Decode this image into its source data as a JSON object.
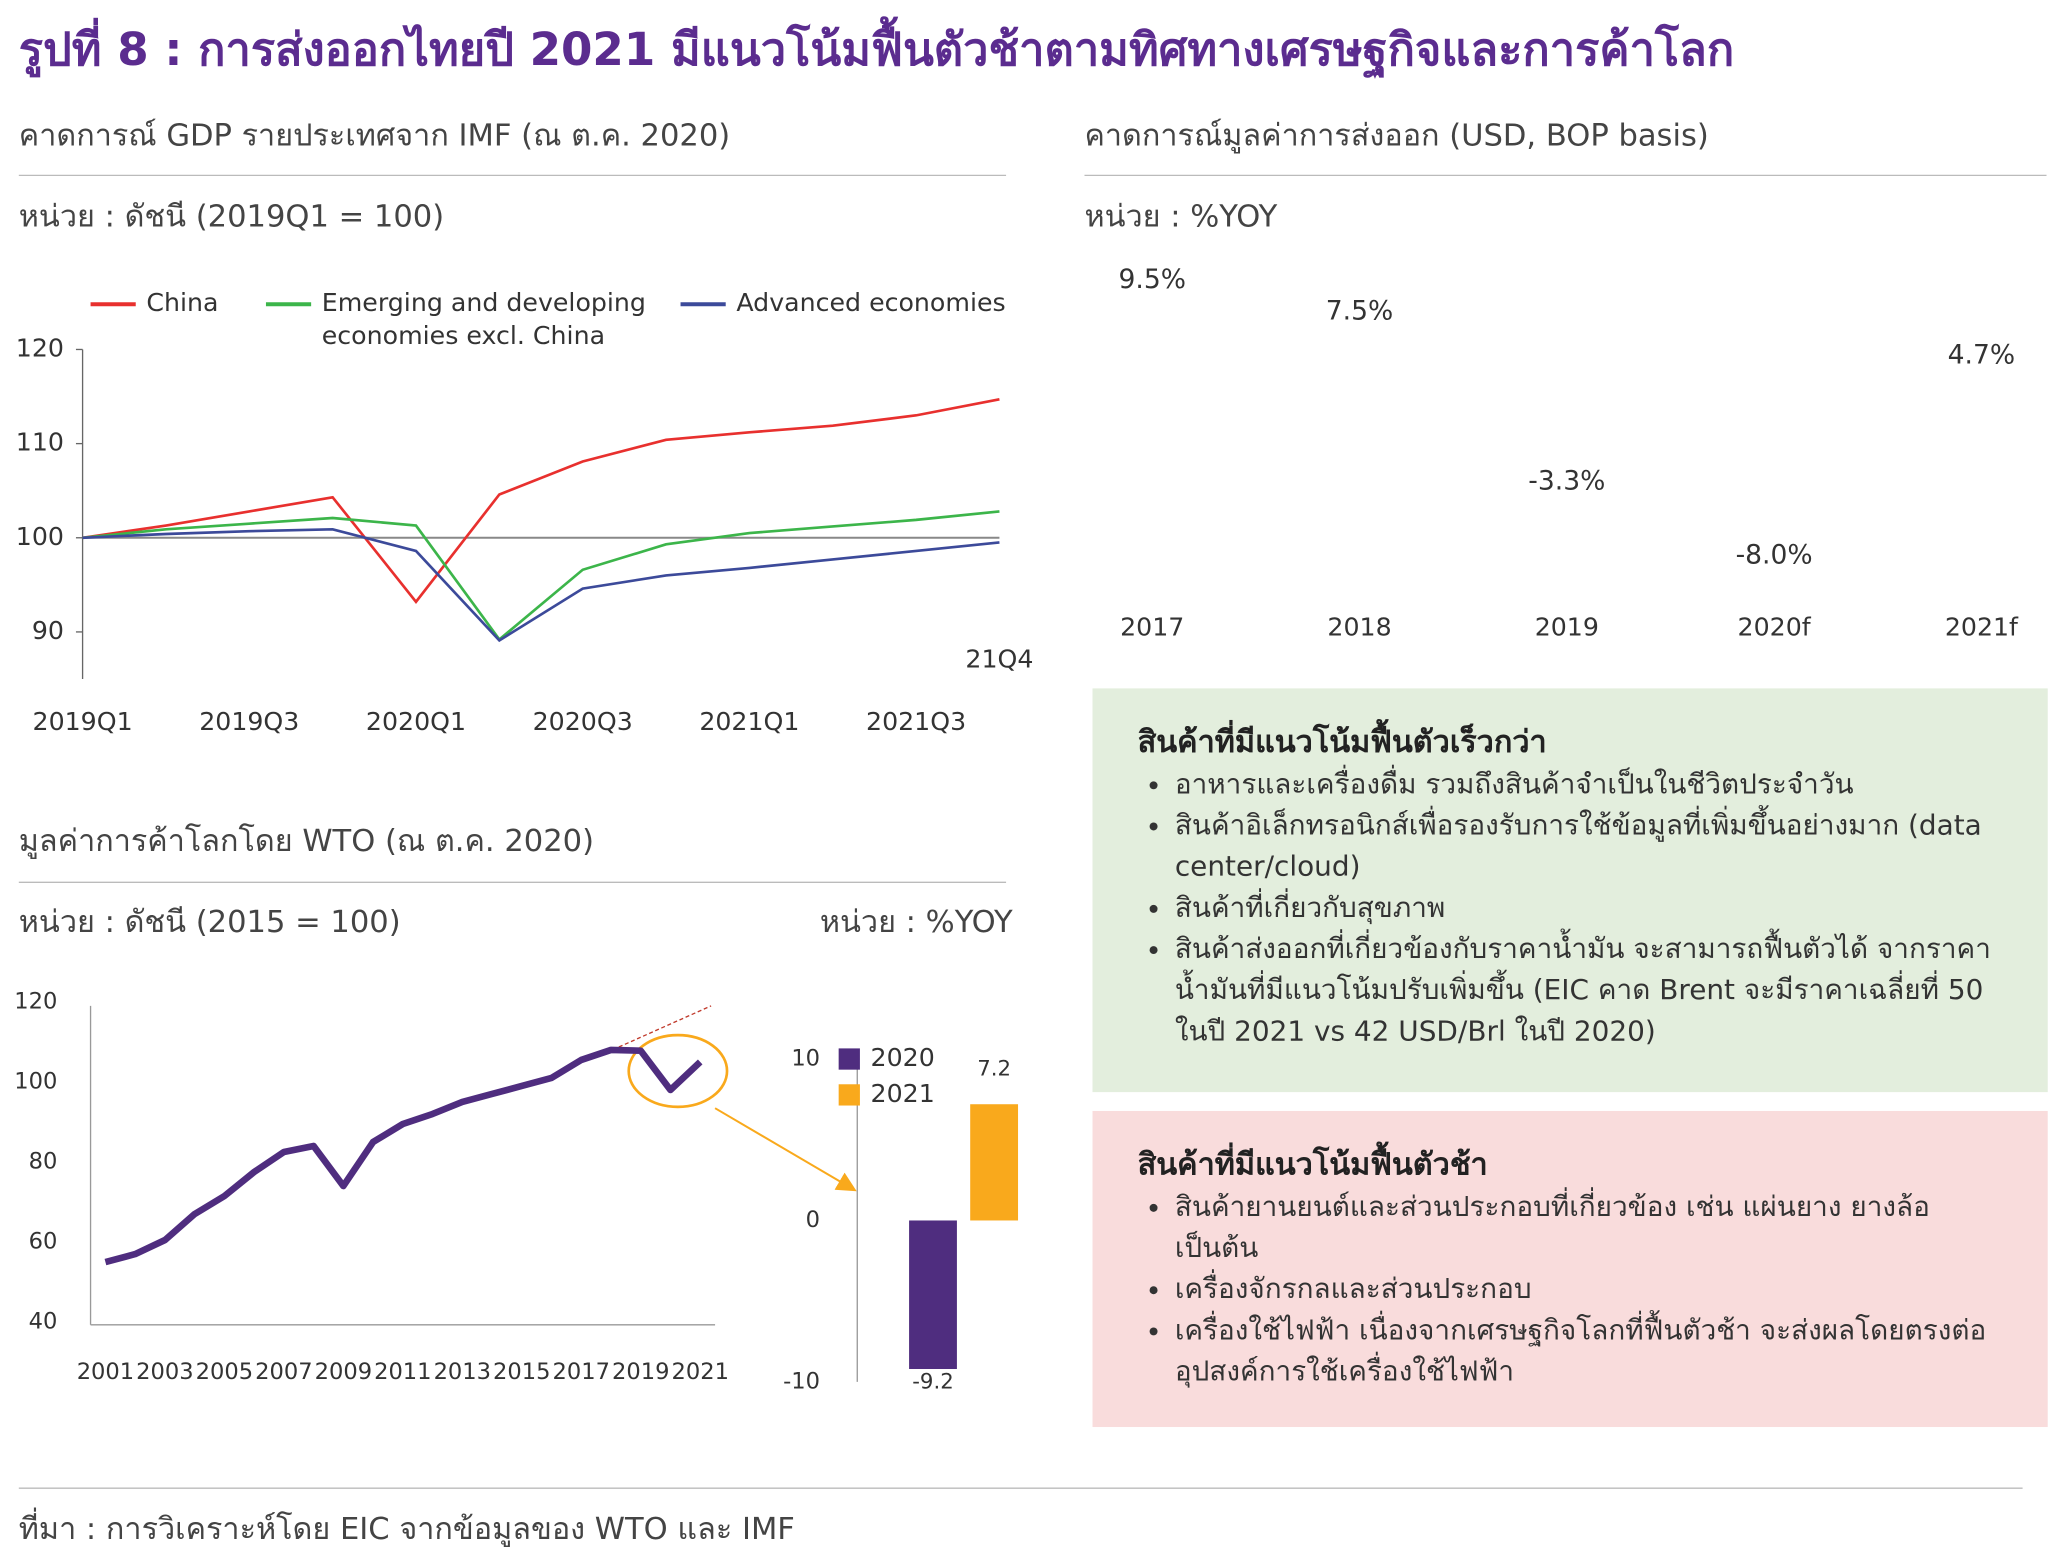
{
  "title": "รูปที่ 8 : การส่งออกไทยปี 2021 มีแนวโน้มฟื้นตัวช้าตามทิศทางเศรษฐกิจและการค้าโลก",
  "source": "ที่มา : การวิเคราะห์โดย EIC จากข้อมูลของ WTO และ IMF",
  "chart_data": [
    {
      "type": "line",
      "title": "คาดการณ์ GDP รายประเทศจาก IMF (ณ ต.ค. 2020)",
      "unit": "หน่วย : ดัชนี (2019Q1 = 100)",
      "categories": [
        "2019Q1",
        null,
        "2019Q3",
        null,
        "2020Q1",
        null,
        "2020Q3",
        null,
        "2021Q1",
        null,
        "2021Q3",
        null
      ],
      "annotation": "21Q4",
      "ylim": [
        85,
        120
      ],
      "yticks": [
        90,
        100,
        110,
        120
      ],
      "baseline": 100,
      "legend": "top",
      "series": [
        {
          "name": "China",
          "color": "#e8302e",
          "values": [
            100,
            101.3,
            102.8,
            104.3,
            93.2,
            104.6,
            108.1,
            110.4,
            111.2,
            111.9,
            113.0,
            114.7
          ]
        },
        {
          "name": "Emerging and developing economies excl. China",
          "color": "#3cb54a",
          "values": [
            100,
            100.9,
            101.5,
            102.1,
            101.3,
            89.2,
            96.6,
            99.3,
            100.5,
            101.2,
            101.9,
            102.8
          ]
        },
        {
          "name": "Advanced economies",
          "color": "#3c4a9a",
          "values": [
            100,
            100.4,
            100.7,
            100.9,
            98.6,
            89.1,
            94.6,
            96.0,
            96.8,
            97.7,
            98.6,
            99.5
          ]
        }
      ]
    },
    {
      "type": "bar",
      "title": "คาดการณ์มูลค่าการส่งออก (USD, BOP basis)",
      "unit": "หน่วย : %YOY",
      "categories": [
        "2017",
        "2018",
        "2019",
        "2020f",
        "2021f"
      ],
      "values": [
        9.5,
        7.5,
        -3.3,
        -8.0,
        4.7
      ],
      "value_labels": [
        "9.5%",
        "7.5%",
        "-3.3%",
        "-8.0%",
        "4.7%"
      ],
      "ylim": [
        -10,
        10
      ],
      "bars_visible": false
    },
    {
      "type": "line",
      "title": "มูลค่าการค้าโลกโดย WTO (ณ ต.ค. 2020)",
      "unit": "หน่วย : ดัชนี (2015 = 100)",
      "x": [
        2001,
        2002,
        2003,
        2004,
        2005,
        2006,
        2007,
        2008,
        2009,
        2010,
        2011,
        2012,
        2013,
        2014,
        2015,
        2016,
        2017,
        2018,
        2019,
        2020,
        2021
      ],
      "color": "#4f2d7f",
      "values": [
        55,
        57,
        60.5,
        67,
        71.5,
        77.5,
        82.5,
        84,
        74,
        85,
        89.5,
        92,
        95,
        97,
        99,
        101,
        105.5,
        108,
        107.8,
        98,
        105
      ],
      "xlim": [
        2000.5,
        2021.5
      ],
      "xticks": [
        2001,
        2003,
        2005,
        2007,
        2009,
        2011,
        2013,
        2015,
        2017,
        2019,
        2021
      ],
      "ylim": [
        40,
        120
      ],
      "yticks": [
        40,
        60,
        80,
        100,
        120
      ]
    },
    {
      "type": "bar",
      "unit": "หน่วย : %YOY",
      "ylim": [
        -10,
        10
      ],
      "yticks": [
        -10,
        0,
        10
      ],
      "series": [
        {
          "name": "2020",
          "color": "#4f2d7f",
          "values": [
            -9.2
          ]
        },
        {
          "name": "2021",
          "color": "#f9a91c",
          "values": [
            7.2
          ]
        }
      ]
    }
  ],
  "panels": [
    {
      "heading": "สินค้าที่มีแนวโน้มฟื้นตัวเร็วกว่า",
      "items": [
        "อาหารและเครื่องดื่ม รวมถึงสินค้าจำเป็นในชีวิตประจำวัน",
        "สินค้าอิเล็กทรอนิกส์เพื่อรองรับการใช้ข้อมูลที่เพิ่มขึ้นอย่างมาก (data center/cloud)",
        "สินค้าที่เกี่ยวกับสุขภาพ",
        "สินค้าส่งออกที่เกี่ยวข้องกับราคาน้ำมัน จะสามารถฟื้นตัวได้ จากราคาน้ำมันที่มีแนวโน้มปรับเพิ่มขึ้น (EIC คาด Brent จะมีราคาเฉลี่ยที่ 50 ในปี 2021 vs 42 USD/Brl ในปี 2020)"
      ]
    },
    {
      "heading": "สินค้าที่มีแนวโน้มฟื้นตัวช้า",
      "items": [
        "สินค้ายานยนต์และส่วนประกอบที่เกี่ยวข้อง เช่น แผ่นยาง ยางล้อ เป็นต้น",
        "เครื่องจักรกลและส่วนประกอบ",
        "เครื่องใช้ไฟฟ้า เนื่องจากเศรษฐกิจโลกที่ฟื้นตัวช้า จะส่งผลโดยตรงต่ออุปสงค์การใช้เครื่องใช้ไฟฟ้า"
      ]
    }
  ]
}
